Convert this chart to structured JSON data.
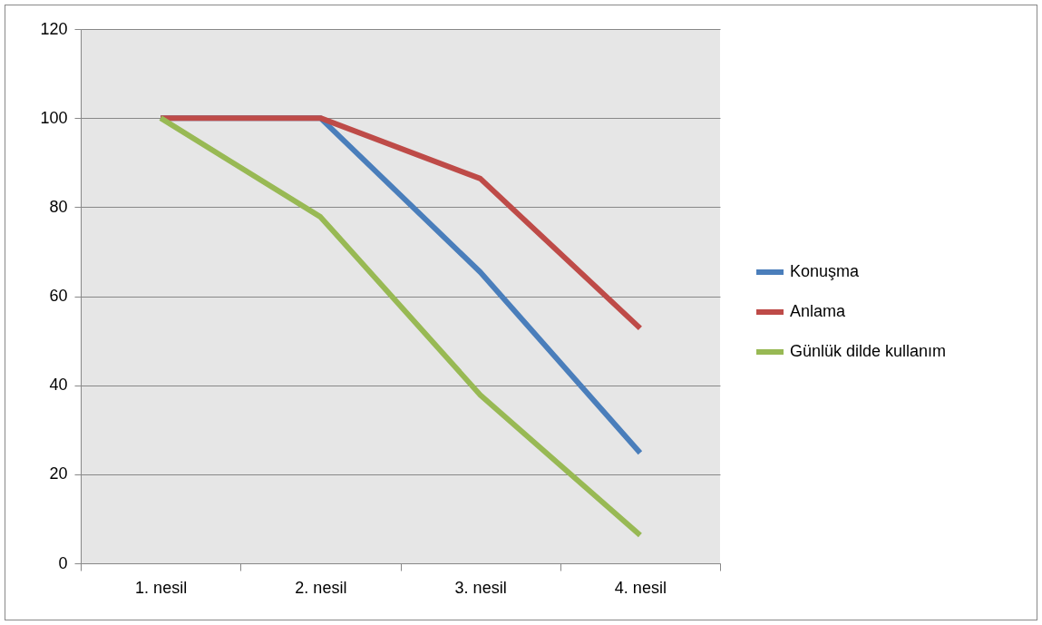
{
  "chart_data": {
    "type": "line",
    "categories": [
      "1. nesil",
      "2. nesil",
      "3. nesil",
      "4. nesil"
    ],
    "series": [
      {
        "name": "Konuşma",
        "color": "#4a7ebb",
        "values": [
          100,
          100,
          65.4,
          24.8
        ]
      },
      {
        "name": "Anlama",
        "color": "#be4b48",
        "values": [
          100,
          100,
          86.4,
          52.8
        ]
      },
      {
        "name": "Günlük dilde kullanım",
        "color": "#98b954",
        "values": [
          100,
          77.8,
          37.8,
          6.3
        ]
      }
    ],
    "ylim": [
      0,
      120
    ],
    "yticks": [
      0,
      20,
      40,
      60,
      80,
      100,
      120
    ],
    "grid": "y",
    "legend": "right",
    "marker": "none",
    "line_style": "solid"
  }
}
